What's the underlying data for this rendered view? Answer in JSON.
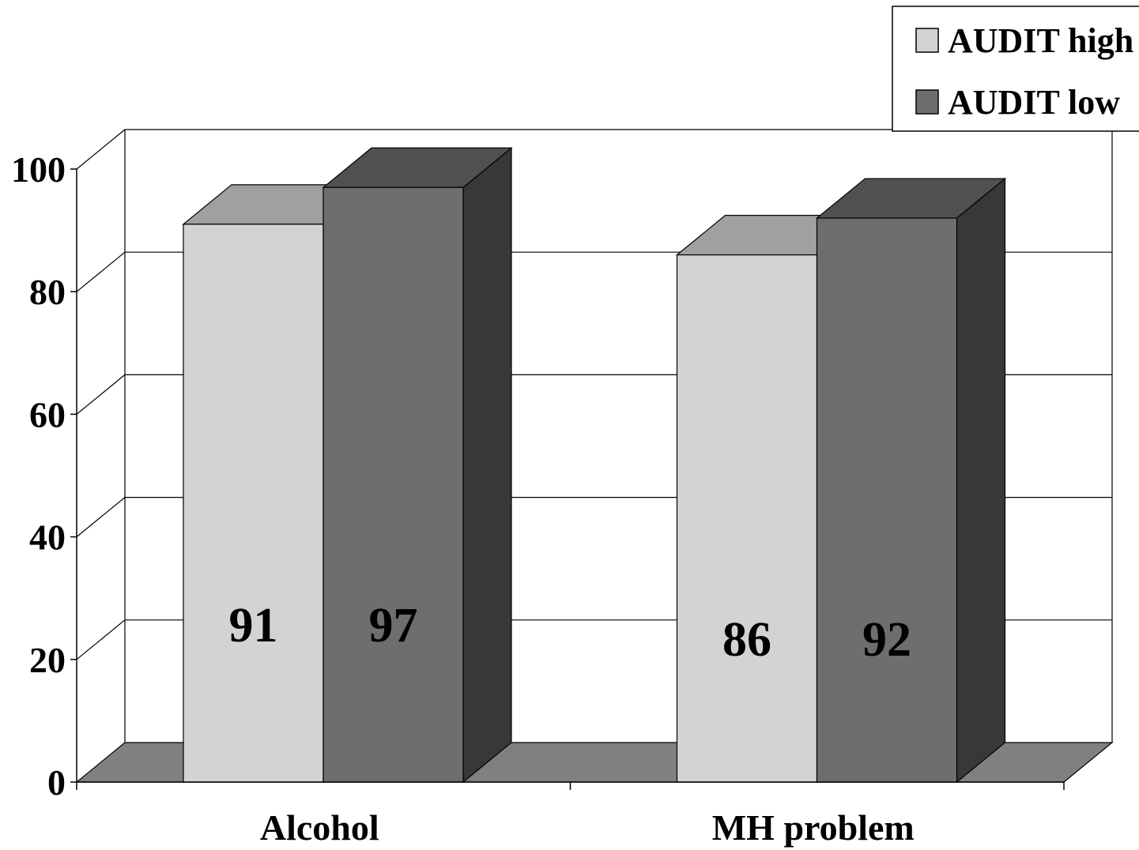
{
  "chart_data": {
    "type": "bar",
    "title": "",
    "xlabel": "",
    "ylabel": "",
    "categories": [
      "Alcohol",
      "MH problem"
    ],
    "series": [
      {
        "name": "AUDIT high",
        "values": [
          91,
          86
        ],
        "color": "#d3d3d3",
        "top_color": "#a0a0a0",
        "side_color": "#8a8a8a"
      },
      {
        "name": "AUDIT low",
        "values": [
          97,
          92
        ],
        "color": "#6e6e6e",
        "top_color": "#505050",
        "side_color": "#383838"
      }
    ],
    "data_labels": [
      [
        "91",
        "86"
      ],
      [
        "97",
        "92"
      ]
    ],
    "ylim": [
      0,
      100
    ],
    "yticks": [
      0,
      20,
      40,
      60,
      80,
      100
    ],
    "grid": true,
    "legend": "top-right",
    "three_d": true,
    "floor_color": "#808080"
  }
}
